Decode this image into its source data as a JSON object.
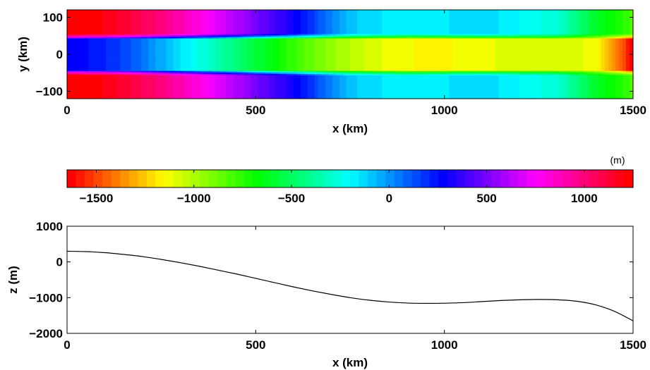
{
  "chart_data": [
    {
      "type": "heatmap",
      "xlabel": "x (km)",
      "ylabel": "y (km)",
      "xlim": [
        0,
        1500
      ],
      "ylim": [
        -120,
        120
      ],
      "xticks": [
        "0",
        "500",
        "1000",
        "1500"
      ],
      "yticks": [
        "100",
        "0",
        "−100"
      ],
      "channel_half_width": 50,
      "field_description_units": "m",
      "center_profile_x": [
        0,
        100,
        200,
        300,
        400,
        500,
        600,
        700,
        800,
        900,
        1000,
        1100,
        1200,
        1300,
        1400,
        1450,
        1500
      ],
      "center_profile_z": [
        300,
        220,
        60,
        -150,
        -350,
        -560,
        -780,
        -950,
        -1080,
        -1150,
        -1160,
        -1120,
        -1080,
        -1070,
        -1120,
        -1350,
        -1650
      ],
      "outside_value_at_x": [
        {
          "x": 0,
          "value": 1250
        },
        {
          "x": 100,
          "value": 1200
        },
        {
          "x": 250,
          "value": 1000
        },
        {
          "x": 400,
          "value": 700
        },
        {
          "x": 600,
          "value": 300
        },
        {
          "x": 750,
          "value": -100
        },
        {
          "x": 900,
          "value": -200
        },
        {
          "x": 1100,
          "value": -120
        },
        {
          "x": 1300,
          "value": -280
        },
        {
          "x": 1400,
          "value": -600
        },
        {
          "x": 1500,
          "value": -800
        }
      ]
    },
    {
      "type": "colorbar",
      "unit_label": "(m)",
      "range": [
        -1650,
        1250
      ],
      "ticks": [
        "−1500",
        "−1000",
        "−500",
        "0",
        "500",
        "1000"
      ],
      "tick_values": [
        -1500,
        -1000,
        -500,
        0,
        500,
        1000
      ]
    },
    {
      "type": "line",
      "xlabel": "x (km)",
      "ylabel": "z (m)",
      "xlim": [
        0,
        1500
      ],
      "ylim": [
        -2000,
        1000
      ],
      "xticks": [
        "0",
        "500",
        "1000",
        "1500"
      ],
      "yticks": [
        "1000",
        "0",
        "−1000",
        "−2000"
      ],
      "series": [
        {
          "x": [
            0,
            50,
            100,
            150,
            200,
            250,
            300,
            350,
            400,
            450,
            500,
            550,
            600,
            650,
            700,
            750,
            800,
            850,
            900,
            950,
            1000,
            1050,
            1100,
            1150,
            1200,
            1250,
            1300,
            1350,
            1400,
            1450,
            1500
          ],
          "y": [
            300,
            290,
            260,
            210,
            150,
            70,
            -20,
            -120,
            -230,
            -340,
            -460,
            -580,
            -700,
            -810,
            -910,
            -1000,
            -1070,
            -1120,
            -1150,
            -1160,
            -1155,
            -1140,
            -1110,
            -1080,
            -1060,
            -1050,
            -1060,
            -1100,
            -1200,
            -1380,
            -1650
          ]
        }
      ]
    }
  ]
}
